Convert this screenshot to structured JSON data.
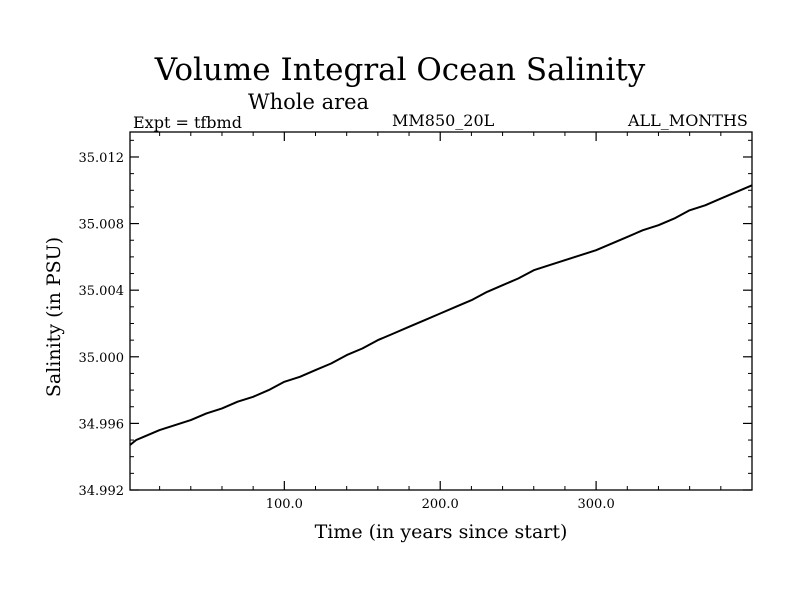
{
  "chart_data": {
    "type": "line",
    "title": "Volume Integral Ocean Salinity",
    "subtitle": "Whole area",
    "annotations": {
      "left": "Expt = tfbmd",
      "center": "MM850_20L",
      "right": "ALL_MONTHS"
    },
    "xlabel": "Time (in years since start)",
    "ylabel": "Salinity (in PSU)",
    "xlim": [
      1,
      400
    ],
    "ylim": [
      34.992,
      35.0135
    ],
    "xticks": [
      100.0,
      200.0,
      300.0
    ],
    "xtick_labels": [
      "100.0",
      "200.0",
      "300.0"
    ],
    "yticks": [
      34.992,
      34.996,
      35.0,
      35.004,
      35.008,
      35.012
    ],
    "ytick_labels": [
      "34.992",
      "34.996",
      "35.000",
      "35.004",
      "35.008",
      "35.012"
    ],
    "grid": false,
    "line_color": "#000000",
    "series": [
      {
        "x": [
          1,
          5,
          10,
          20,
          30,
          40,
          50,
          60,
          70,
          80,
          90,
          100,
          110,
          120,
          130,
          140,
          150,
          160,
          170,
          180,
          190,
          200,
          210,
          220,
          230,
          240,
          250,
          260,
          270,
          280,
          290,
          300,
          310,
          320,
          330,
          340,
          350,
          360,
          370,
          380,
          390,
          400
        ],
        "y": [
          34.9947,
          34.995,
          34.9952,
          34.9956,
          34.9959,
          34.9962,
          34.9966,
          34.9969,
          34.9973,
          34.9976,
          34.998,
          34.9985,
          34.9988,
          34.9992,
          34.9996,
          35.0001,
          35.0005,
          35.001,
          35.0014,
          35.0018,
          35.0022,
          35.0026,
          35.003,
          35.0034,
          35.0039,
          35.0043,
          35.0047,
          35.0052,
          35.0055,
          35.0058,
          35.0061,
          35.0064,
          35.0068,
          35.0072,
          35.0076,
          35.0079,
          35.0083,
          35.0088,
          35.0091,
          35.0095,
          35.0099,
          35.0103
        ]
      }
    ]
  }
}
